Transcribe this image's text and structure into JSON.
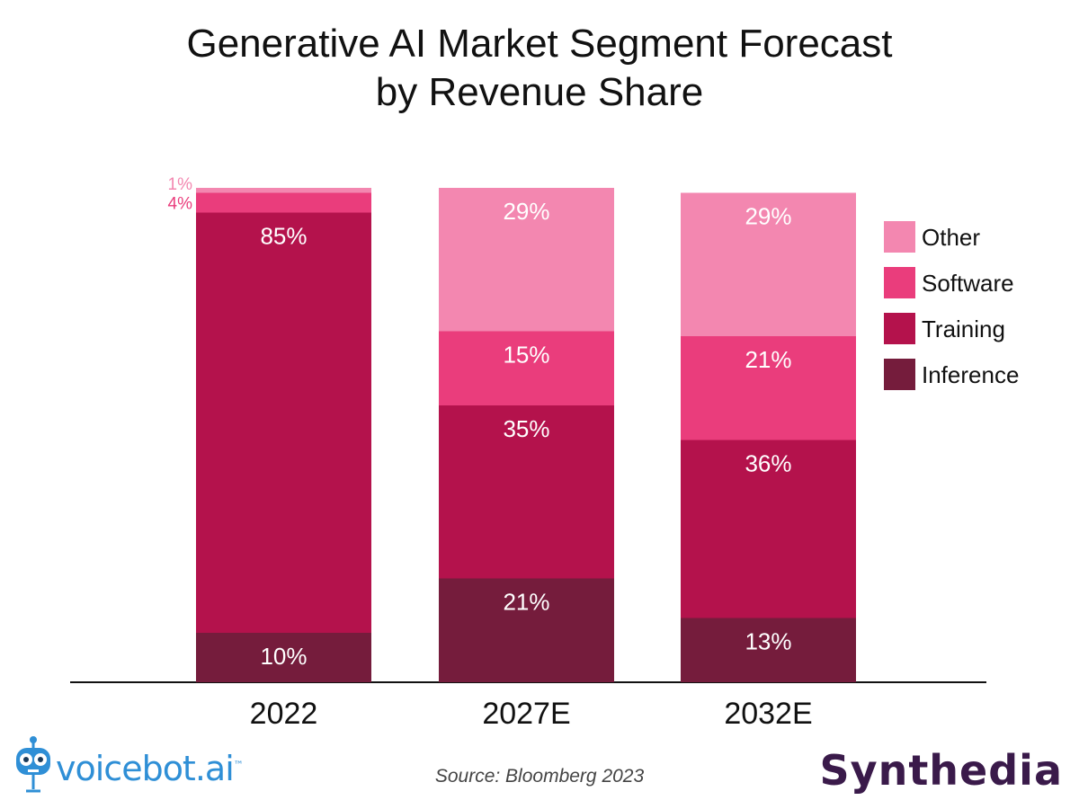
{
  "title_line1": "Generative AI Market Segment Forecast",
  "title_line2": "by Revenue Share",
  "source": "Source: Bloomberg 2023",
  "brand_left": "voicebot.ai",
  "brand_left_tm": "™",
  "brand_right": "Synthedia",
  "colors": {
    "Other": "#f387b0",
    "Software": "#ea3d7c",
    "Training": "#b4124c",
    "Inference": "#751c3c"
  },
  "chart_data": {
    "type": "bar",
    "stacked": true,
    "categories": [
      "2022",
      "2027E",
      "2032E"
    ],
    "series": [
      {
        "name": "Inference",
        "values": [
          10,
          21,
          13
        ],
        "labels": [
          "10%",
          "21%",
          "13%"
        ]
      },
      {
        "name": "Training",
        "values": [
          85,
          35,
          36
        ],
        "labels": [
          "85%",
          "35%",
          "36%"
        ]
      },
      {
        "name": "Software",
        "values": [
          4,
          15,
          21
        ],
        "labels": [
          "4%",
          "15%",
          "21%"
        ]
      },
      {
        "name": "Other",
        "values": [
          1,
          29,
          29
        ],
        "labels": [
          "1%",
          "29%",
          "29%"
        ]
      }
    ],
    "legend": [
      "Other",
      "Software",
      "Training",
      "Inference"
    ],
    "legend_position": "right",
    "ylim": [
      0,
      100
    ],
    "grid": false
  }
}
